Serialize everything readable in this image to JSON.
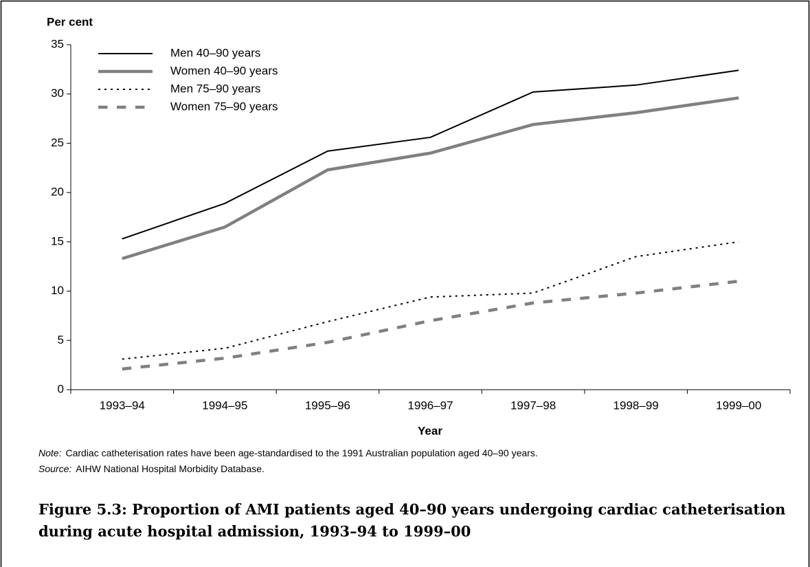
{
  "chart_data": {
    "type": "line",
    "y_label": "Per cent",
    "x_label": "Year",
    "categories": [
      "1993–94",
      "1994–95",
      "1995–96",
      "1996–97",
      "1997–98",
      "1998–99",
      "1999–00"
    ],
    "series": [
      {
        "name": "Men 40–90 years",
        "color": "#000000",
        "width": 2,
        "dash": "solid",
        "values": [
          15.3,
          18.9,
          24.2,
          25.6,
          30.2,
          30.9,
          32.4
        ]
      },
      {
        "name": "Women 40–90 years",
        "color": "#808080",
        "width": 4.5,
        "dash": "solid",
        "values": [
          13.3,
          16.5,
          22.3,
          24.0,
          26.9,
          28.1,
          29.6
        ]
      },
      {
        "name": "Men 75–90 years",
        "color": "#000000",
        "width": 2,
        "dash": "dotted",
        "values": [
          3.1,
          4.2,
          6.9,
          9.4,
          9.8,
          13.5,
          15.0
        ]
      },
      {
        "name": "Women 75–90 years",
        "color": "#808080",
        "width": 4.5,
        "dash": "dashed",
        "values": [
          2.1,
          3.2,
          4.8,
          7.0,
          8.8,
          9.8,
          11.0
        ]
      }
    ],
    "ylim": [
      0,
      35
    ],
    "yticks": [
      0,
      5,
      10,
      15,
      20,
      25,
      30,
      35
    ],
    "grid": false,
    "legend": "upper left",
    "notes": [
      {
        "label": "Note:",
        "text": "Cardiac catheterisation rates have been age-standardised to the 1991 Australian population aged 40–90 years."
      },
      {
        "label": "Source:",
        "text": "AIHW National Hospital Morbidity Database."
      }
    ],
    "caption": [
      "Figure 5.3: Proportion of AMI patients aged 40–90 years undergoing cardiac catheterisation",
      "during  acute hospital admission, 1993–94 to 1999–00"
    ]
  }
}
